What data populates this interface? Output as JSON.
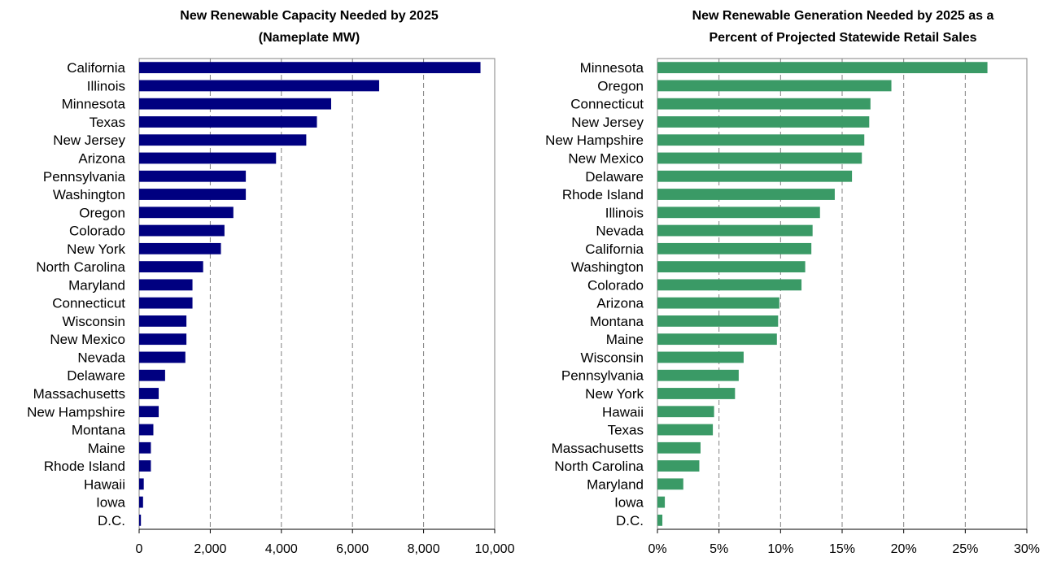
{
  "chart_data": [
    {
      "type": "bar",
      "orientation": "horizontal",
      "title": [
        "New Renewable Capacity Needed by 2025",
        "(Nameplate MW)"
      ],
      "categories": [
        "California",
        "Illinois",
        "Minnesota",
        "Texas",
        "New Jersey",
        "Arizona",
        "Pennsylvania",
        "Washington",
        "Oregon",
        "Colorado",
        "New York",
        "North Carolina",
        "Maryland",
        "Connecticut",
        "Wisconsin",
        "New Mexico",
        "Nevada",
        "Delaware",
        "Massachusetts",
        "New Hampshire",
        "Montana",
        "Maine",
        "Rhode Island",
        "Hawaii",
        "Iowa",
        "D.C."
      ],
      "values": [
        9600,
        6750,
        5400,
        5000,
        4700,
        3850,
        3000,
        3000,
        2650,
        2400,
        2300,
        1800,
        1500,
        1500,
        1330,
        1330,
        1300,
        730,
        550,
        550,
        400,
        330,
        330,
        130,
        110,
        50
      ],
      "xlim": [
        0,
        10000
      ],
      "xticks": [
        0,
        2000,
        4000,
        6000,
        8000,
        10000
      ],
      "xtick_labels": [
        "0",
        "2,000",
        "4,000",
        "6,000",
        "8,000",
        "10,000"
      ],
      "grid": "vertical dashed",
      "color": "#000080"
    },
    {
      "type": "bar",
      "orientation": "horizontal",
      "title": [
        "New Renewable Generation Needed by 2025 as a",
        "Percent of Projected Statewide Retail Sales"
      ],
      "categories": [
        "Minnesota",
        "Oregon",
        "Connecticut",
        "New Jersey",
        "New Hampshire",
        "New Mexico",
        "Delaware",
        "Rhode Island",
        "Illinois",
        "Nevada",
        "California",
        "Washington",
        "Colorado",
        "Arizona",
        "Montana",
        "Maine",
        "Wisconsin",
        "Pennsylvania",
        "New York",
        "Hawaii",
        "Texas",
        "Massachusetts",
        "North Carolina",
        "Maryland",
        "Iowa",
        "D.C."
      ],
      "values": [
        26.8,
        19.0,
        17.3,
        17.2,
        16.8,
        16.6,
        15.8,
        14.4,
        13.2,
        12.6,
        12.5,
        12.0,
        11.7,
        9.9,
        9.8,
        9.7,
        7.0,
        6.6,
        6.3,
        4.6,
        4.5,
        3.5,
        3.4,
        2.1,
        0.6,
        0.4
      ],
      "xlim": [
        0,
        30
      ],
      "xticks": [
        0,
        5,
        10,
        15,
        20,
        25,
        30
      ],
      "xtick_labels": [
        "0%",
        "5%",
        "10%",
        "15%",
        "20%",
        "25%",
        "30%"
      ],
      "grid": "vertical dashed",
      "color": "#3a9a66"
    }
  ]
}
